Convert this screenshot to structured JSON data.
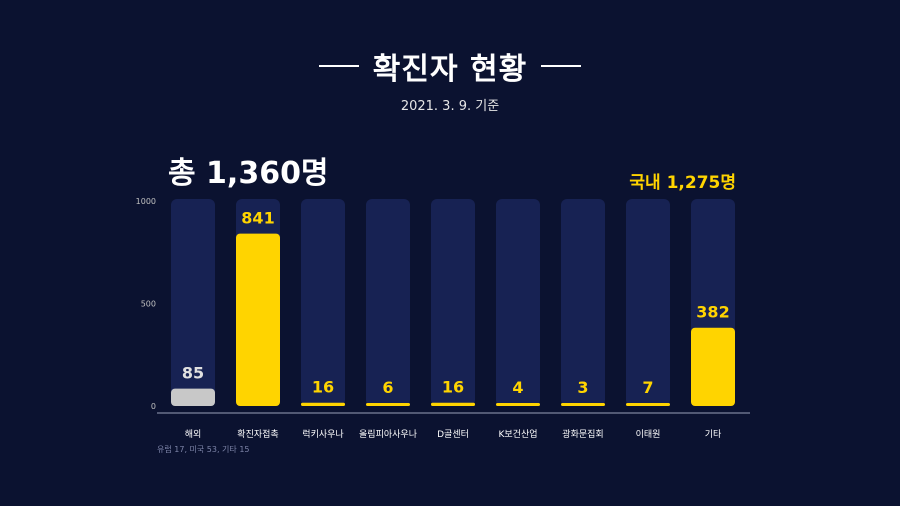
{
  "title": "확진자 현황",
  "subtitle": "2021. 3. 9. 기준",
  "total_label": "총  1,360명",
  "domestic_label": "국내  1,275명",
  "note": "유럽 17, 미국 53, 기타 15",
  "colors": {
    "background": "#0b1230",
    "track": "#172253",
    "domestic_bar": "#ffd400",
    "overseas_bar": "#c8c8c8",
    "overseas_label": "#e0e0e0",
    "axis": "#c0c0c0"
  },
  "chart_data": {
    "type": "bar",
    "categories": [
      "해외",
      "확진자접촉",
      "럭키사우나",
      "올림피아사우나",
      "D골센터",
      "K보건산업",
      "광화문집회",
      "이태원",
      "기타"
    ],
    "values": [
      85,
      841,
      16,
      6,
      16,
      4,
      3,
      7,
      382
    ],
    "highlight": [
      "overseas",
      "domestic",
      "domestic",
      "domestic",
      "domestic",
      "domestic",
      "domestic",
      "domestic",
      "domestic"
    ],
    "ylim": [
      0,
      1000
    ],
    "yticks": [
      0,
      500,
      1000
    ],
    "grid": false
  }
}
